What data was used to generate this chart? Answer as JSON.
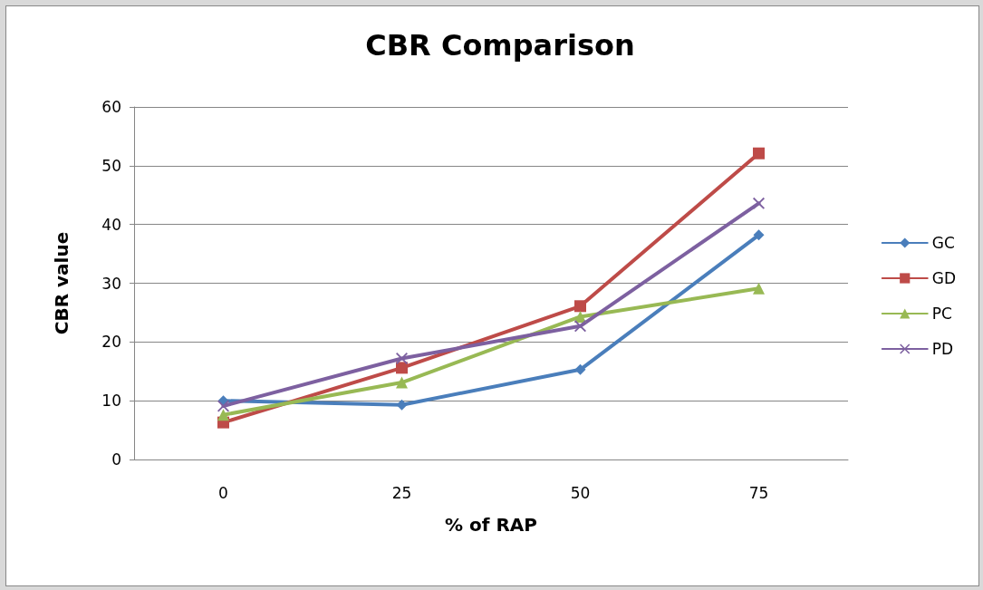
{
  "chart_data": {
    "type": "line",
    "title": "CBR Comparison",
    "xlabel": "% of RAP",
    "ylabel": "CBR value",
    "categories": [
      "0",
      "25",
      "50",
      "75"
    ],
    "series": [
      {
        "name": "GC",
        "color": "#4a7ebb",
        "marker": "diamond",
        "values": [
          10.0,
          9.3,
          15.3,
          38.2
        ]
      },
      {
        "name": "GD",
        "color": "#be4b48",
        "marker": "square",
        "values": [
          6.3,
          15.6,
          26.1,
          52.1
        ]
      },
      {
        "name": "PC",
        "color": "#98b954",
        "marker": "triangle",
        "values": [
          7.6,
          13.1,
          24.3,
          29.1
        ]
      },
      {
        "name": "PD",
        "color": "#7d60a0",
        "marker": "cross",
        "values": [
          9.1,
          17.2,
          22.7,
          43.6
        ]
      }
    ],
    "ylim": [
      0,
      60
    ],
    "yticks": [
      0,
      10,
      20,
      30,
      40,
      50,
      60
    ],
    "grid": "y",
    "legend": "right",
    "line_style": "solid"
  }
}
